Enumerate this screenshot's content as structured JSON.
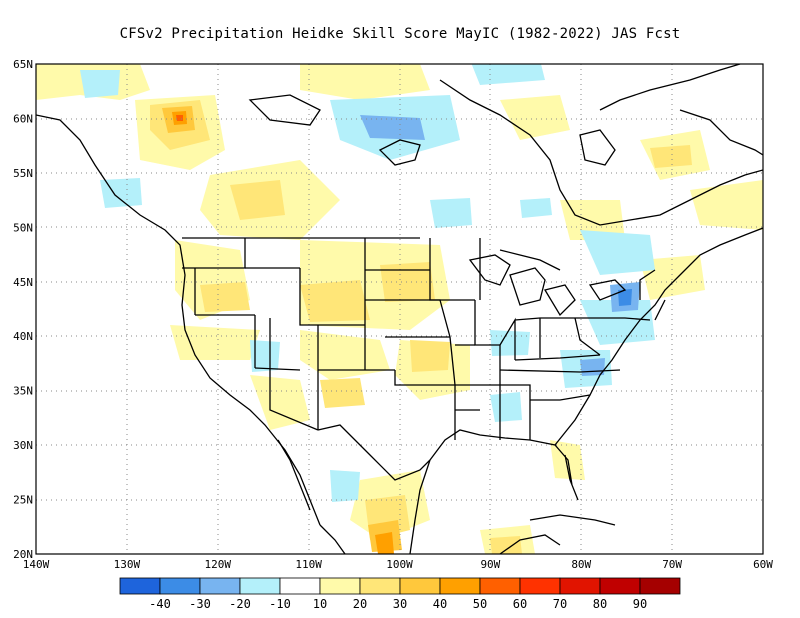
{
  "title": "CFSv2  Precipitation Heidke Skill Score MayIC (1982-2022) JAS Fcst",
  "axes": {
    "lat_ticks": [
      "20N",
      "25N",
      "30N",
      "35N",
      "40N",
      "45N",
      "50N",
      "55N",
      "60N",
      "65N"
    ],
    "lon_ticks": [
      "140W",
      "130W",
      "120W",
      "110W",
      "100W",
      "90W",
      "80W",
      "70W",
      "60W"
    ],
    "lat_range": [
      20,
      65
    ],
    "lon_range": [
      -140,
      -60
    ],
    "grid": "dotted"
  },
  "colorbar": {
    "colors": [
      "#1e64dc",
      "#3c8ce6",
      "#78b4f0",
      "#b4f0fa",
      "#ffffff",
      "#fffaaa",
      "#ffe678",
      "#ffc83c",
      "#ffa000",
      "#ff6000",
      "#ff3200",
      "#e11400",
      "#c00000",
      "#a50000"
    ],
    "labels": [
      "-40",
      "-30",
      "-20",
      "-10",
      "10",
      "20",
      "30",
      "40",
      "50",
      "60",
      "70",
      "80",
      "90"
    ]
  }
}
